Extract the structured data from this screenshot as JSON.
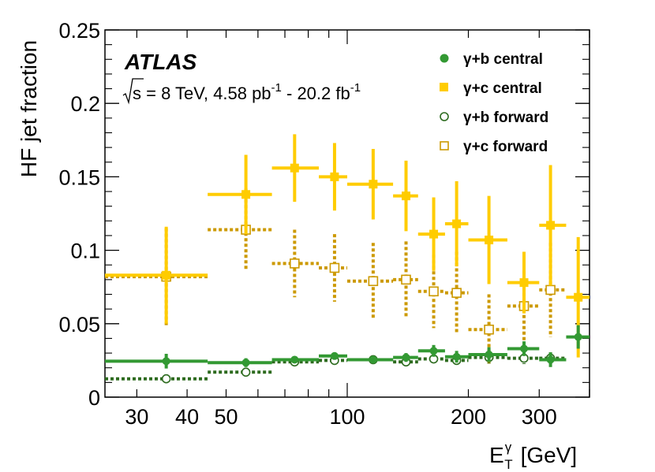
{
  "chart_data": {
    "type": "scatter",
    "ylabel": "HF jet fraction",
    "xlabel": {
      "symbol": "E",
      "superscript": "γ",
      "subscript": "T",
      "unit": "[GeV]"
    },
    "x_scale": "log",
    "xlim": [
      25,
      400
    ],
    "ylim": [
      0,
      0.25
    ],
    "y_ticks": [
      0,
      0.05,
      0.1,
      0.15,
      0.2,
      0.25
    ],
    "y_tick_labels": [
      "0",
      "0.05",
      "0.1",
      "0.15",
      "0.2",
      "0.25"
    ],
    "x_tick_labels": [
      {
        "value": 30,
        "label": "30"
      },
      {
        "value": 40,
        "label": "40"
      },
      {
        "value": 50,
        "label": "50"
      },
      {
        "value": 100,
        "label": "100"
      },
      {
        "value": 200,
        "label": "200"
      },
      {
        "value": 300,
        "label": "300"
      }
    ],
    "annotations": {
      "experiment": "ATLAS",
      "sqrt_s": "s",
      "energy_text": " = 8 TeV, 4.58 pb",
      "exp1": "-1",
      "separator": " - 20.2 fb",
      "exp2": "-1"
    },
    "legend_position": "top-right",
    "series": [
      {
        "name": "γ+b central",
        "color": "#339933",
        "marker": "filled-circle",
        "line": "solid",
        "points": [
          {
            "x": 35.5,
            "xlo": 25,
            "xhi": 45,
            "y": 0.0245,
            "yerr": 0.005
          },
          {
            "x": 56,
            "xlo": 45,
            "xhi": 65,
            "y": 0.0235,
            "yerr": 0.003
          },
          {
            "x": 74,
            "xlo": 65,
            "xhi": 85,
            "y": 0.0255,
            "yerr": 0.002
          },
          {
            "x": 93,
            "xlo": 85,
            "xhi": 100,
            "y": 0.028,
            "yerr": 0.002
          },
          {
            "x": 116,
            "xlo": 100,
            "xhi": 130,
            "y": 0.0255,
            "yerr": 0.002
          },
          {
            "x": 140,
            "xlo": 130,
            "xhi": 150,
            "y": 0.027,
            "yerr": 0.003
          },
          {
            "x": 164,
            "xlo": 150,
            "xhi": 175,
            "y": 0.0315,
            "yerr": 0.004
          },
          {
            "x": 187,
            "xlo": 175,
            "xhi": 200,
            "y": 0.0275,
            "yerr": 0.004
          },
          {
            "x": 225,
            "xlo": 200,
            "xhi": 250,
            "y": 0.029,
            "yerr": 0.005
          },
          {
            "x": 275,
            "xlo": 250,
            "xhi": 300,
            "y": 0.033,
            "yerr": 0.005
          },
          {
            "x": 320,
            "xlo": 300,
            "xhi": 350,
            "y": 0.0255,
            "yerr": 0.005
          },
          {
            "x": 375,
            "xlo": 350,
            "xhi": 400,
            "y": 0.041,
            "yerr": 0.008
          }
        ]
      },
      {
        "name": "γ+c central",
        "color": "#ffcc00",
        "marker": "filled-square",
        "line": "solid",
        "points": [
          {
            "x": 35.5,
            "xlo": 25,
            "xhi": 45,
            "y": 0.083,
            "yerr": 0.033
          },
          {
            "x": 56,
            "xlo": 45,
            "xhi": 65,
            "y": 0.138,
            "yerr": 0.027
          },
          {
            "x": 74,
            "xlo": 65,
            "xhi": 85,
            "y": 0.156,
            "yerr": 0.023
          },
          {
            "x": 93,
            "xlo": 85,
            "xhi": 100,
            "y": 0.15,
            "yerr": 0.023
          },
          {
            "x": 116,
            "xlo": 100,
            "xhi": 130,
            "y": 0.145,
            "yerr": 0.024
          },
          {
            "x": 140,
            "xlo": 130,
            "xhi": 150,
            "y": 0.137,
            "yerr": 0.024
          },
          {
            "x": 164,
            "xlo": 150,
            "xhi": 175,
            "y": 0.111,
            "yerr": 0.025
          },
          {
            "x": 187,
            "xlo": 175,
            "xhi": 200,
            "y": 0.118,
            "yerr": 0.029
          },
          {
            "x": 225,
            "xlo": 200,
            "xhi": 250,
            "y": 0.107,
            "yerr": 0.03
          },
          {
            "x": 275,
            "xlo": 250,
            "xhi": 300,
            "y": 0.078,
            "yerr": 0.021
          },
          {
            "x": 320,
            "xlo": 300,
            "xhi": 350,
            "y": 0.117,
            "yerr": 0.041
          },
          {
            "x": 375,
            "xlo": 350,
            "xhi": 400,
            "y": 0.068,
            "yerr": 0.041
          }
        ]
      },
      {
        "name": "γ+b forward",
        "color": "#2d6b1f",
        "marker": "open-circle",
        "line": "dashed",
        "points": [
          {
            "x": 35.5,
            "xlo": 25,
            "xhi": 45,
            "y": 0.0125,
            "yerr": 0.003
          },
          {
            "x": 56,
            "xlo": 45,
            "xhi": 65,
            "y": 0.017,
            "yerr": 0.003
          },
          {
            "x": 74,
            "xlo": 65,
            "xhi": 85,
            "y": 0.024,
            "yerr": 0.002
          },
          {
            "x": 93,
            "xlo": 85,
            "xhi": 100,
            "y": 0.025,
            "yerr": 0.002
          },
          {
            "x": 116,
            "xlo": 100,
            "xhi": 130,
            "y": 0.0255,
            "yerr": 0.002
          },
          {
            "x": 140,
            "xlo": 130,
            "xhi": 150,
            "y": 0.024,
            "yerr": 0.003
          },
          {
            "x": 164,
            "xlo": 150,
            "xhi": 175,
            "y": 0.026,
            "yerr": 0.003
          },
          {
            "x": 187,
            "xlo": 175,
            "xhi": 200,
            "y": 0.025,
            "yerr": 0.003
          },
          {
            "x": 225,
            "xlo": 200,
            "xhi": 250,
            "y": 0.027,
            "yerr": 0.004
          },
          {
            "x": 275,
            "xlo": 250,
            "xhi": 300,
            "y": 0.0265,
            "yerr": 0.004
          },
          {
            "x": 320,
            "xlo": 300,
            "xhi": 350,
            "y": 0.0265,
            "yerr": 0.004
          }
        ]
      },
      {
        "name": "γ+c forward",
        "color": "#cc9900",
        "marker": "open-square",
        "line": "dashed",
        "points": [
          {
            "x": 35.5,
            "xlo": 25,
            "xhi": 45,
            "y": 0.082,
            "yerr": 0.033
          },
          {
            "x": 56,
            "xlo": 45,
            "xhi": 65,
            "y": 0.114,
            "yerr": 0.028
          },
          {
            "x": 74,
            "xlo": 65,
            "xhi": 85,
            "y": 0.091,
            "yerr": 0.023
          },
          {
            "x": 93,
            "xlo": 85,
            "xhi": 100,
            "y": 0.088,
            "yerr": 0.023
          },
          {
            "x": 116,
            "xlo": 100,
            "xhi": 130,
            "y": 0.079,
            "yerr": 0.026
          },
          {
            "x": 140,
            "xlo": 130,
            "xhi": 150,
            "y": 0.08,
            "yerr": 0.026
          },
          {
            "x": 164,
            "xlo": 150,
            "xhi": 175,
            "y": 0.072,
            "yerr": 0.025
          },
          {
            "x": 187,
            "xlo": 175,
            "xhi": 200,
            "y": 0.071,
            "yerr": 0.028
          },
          {
            "x": 225,
            "xlo": 200,
            "xhi": 250,
            "y": 0.046,
            "yerr": 0.024
          },
          {
            "x": 275,
            "xlo": 250,
            "xhi": 300,
            "y": 0.062,
            "yerr": 0.024
          },
          {
            "x": 320,
            "xlo": 300,
            "xhi": 350,
            "y": 0.073,
            "yerr": 0.032
          }
        ]
      }
    ]
  }
}
